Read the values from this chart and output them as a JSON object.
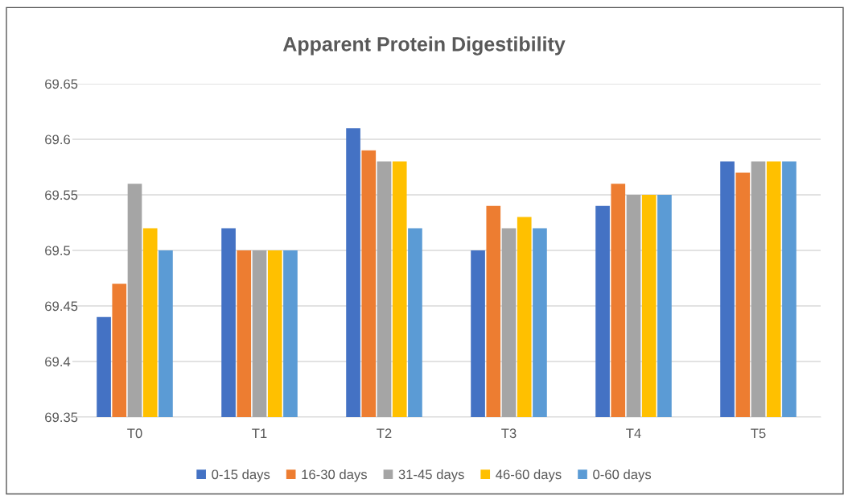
{
  "chart_data": {
    "type": "bar",
    "title": "Apparent Protein Digestibility",
    "categories": [
      "T0",
      "T1",
      "T2",
      "T3",
      "T4",
      "T5"
    ],
    "series": [
      {
        "name": "0-15 days",
        "color": "#4472c4",
        "values": [
          69.44,
          69.52,
          69.61,
          69.5,
          69.54,
          69.58
        ]
      },
      {
        "name": "16-30 days",
        "color": "#ed7d31",
        "values": [
          69.47,
          69.5,
          69.59,
          69.54,
          69.56,
          69.57
        ]
      },
      {
        "name": "31-45 days",
        "color": "#a5a5a5",
        "values": [
          69.56,
          69.5,
          69.58,
          69.52,
          69.55,
          69.58
        ]
      },
      {
        "name": "46-60 days",
        "color": "#ffc000",
        "values": [
          69.52,
          69.5,
          69.58,
          69.53,
          69.55,
          69.58
        ]
      },
      {
        "name": "0-60 days",
        "color": "#5b9bd5",
        "values": [
          69.5,
          69.5,
          69.52,
          69.52,
          69.55,
          69.58
        ]
      }
    ],
    "ylim": [
      69.35,
      69.65
    ],
    "yticks": [
      69.35,
      69.4,
      69.45,
      69.5,
      69.55,
      69.6,
      69.65
    ],
    "grid": "y",
    "legend": "bottom"
  }
}
